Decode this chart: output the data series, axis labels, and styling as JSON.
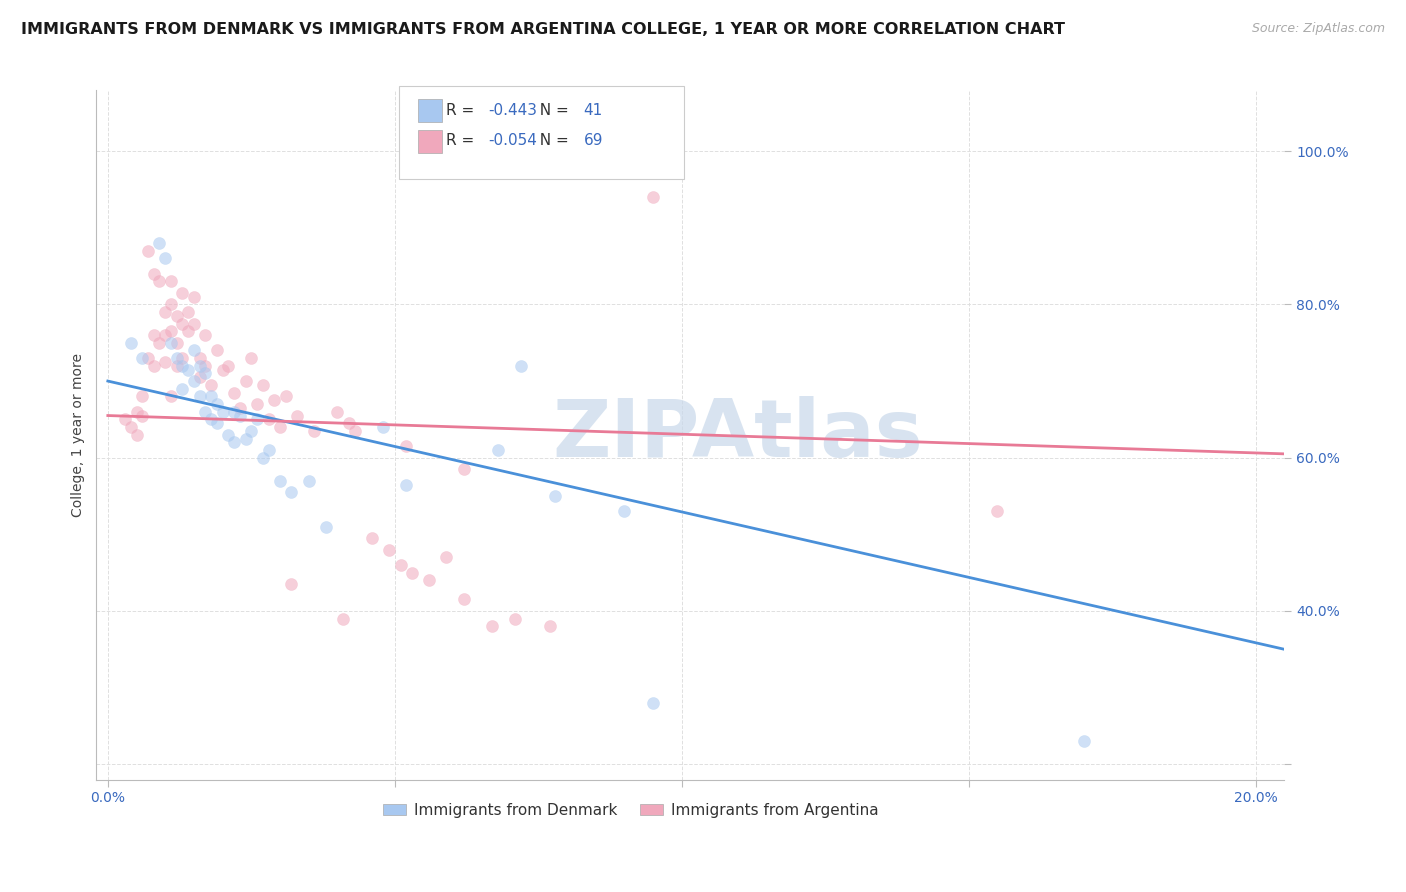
{
  "title": "IMMIGRANTS FROM DENMARK VS IMMIGRANTS FROM ARGENTINA COLLEGE, 1 YEAR OR MORE CORRELATION CHART",
  "source": "Source: ZipAtlas.com",
  "ylabel": "College, 1 year or more",
  "xlim": [
    -0.002,
    0.205
  ],
  "ylim": [
    0.18,
    1.08
  ],
  "xticks": [
    0.0,
    0.05,
    0.1,
    0.15,
    0.2
  ],
  "xtick_labels": [
    "0.0%",
    "",
    "",
    "",
    "20.0%"
  ],
  "yticks": [
    0.2,
    0.4,
    0.6,
    0.8,
    1.0
  ],
  "ytick_labels": [
    "",
    "40.0%",
    "60.0%",
    "80.0%",
    "100.0%"
  ],
  "denmark_color": "#a8c8f0",
  "argentina_color": "#f0a8bc",
  "denmark_line_color": "#4a90d9",
  "argentina_line_color": "#e87a96",
  "denmark_R": "-0.443",
  "denmark_N": "41",
  "argentina_R": "-0.054",
  "argentina_N": "69",
  "denmark_scatter": [
    [
      0.004,
      0.75
    ],
    [
      0.006,
      0.73
    ],
    [
      0.009,
      0.88
    ],
    [
      0.01,
      0.86
    ],
    [
      0.011,
      0.75
    ],
    [
      0.012,
      0.73
    ],
    [
      0.013,
      0.72
    ],
    [
      0.013,
      0.69
    ],
    [
      0.014,
      0.715
    ],
    [
      0.015,
      0.7
    ],
    [
      0.015,
      0.74
    ],
    [
      0.016,
      0.72
    ],
    [
      0.016,
      0.68
    ],
    [
      0.017,
      0.71
    ],
    [
      0.017,
      0.66
    ],
    [
      0.018,
      0.68
    ],
    [
      0.018,
      0.65
    ],
    [
      0.019,
      0.67
    ],
    [
      0.019,
      0.645
    ],
    [
      0.02,
      0.66
    ],
    [
      0.021,
      0.63
    ],
    [
      0.022,
      0.66
    ],
    [
      0.022,
      0.62
    ],
    [
      0.023,
      0.655
    ],
    [
      0.024,
      0.625
    ],
    [
      0.025,
      0.635
    ],
    [
      0.026,
      0.65
    ],
    [
      0.027,
      0.6
    ],
    [
      0.028,
      0.61
    ],
    [
      0.03,
      0.57
    ],
    [
      0.032,
      0.555
    ],
    [
      0.035,
      0.57
    ],
    [
      0.038,
      0.51
    ],
    [
      0.048,
      0.64
    ],
    [
      0.052,
      0.565
    ],
    [
      0.068,
      0.61
    ],
    [
      0.072,
      0.72
    ],
    [
      0.078,
      0.55
    ],
    [
      0.09,
      0.53
    ],
    [
      0.095,
      0.28
    ],
    [
      0.17,
      0.23
    ]
  ],
  "argentina_scatter": [
    [
      0.003,
      0.65
    ],
    [
      0.004,
      0.64
    ],
    [
      0.005,
      0.63
    ],
    [
      0.005,
      0.66
    ],
    [
      0.006,
      0.68
    ],
    [
      0.006,
      0.655
    ],
    [
      0.007,
      0.73
    ],
    [
      0.007,
      0.87
    ],
    [
      0.008,
      0.72
    ],
    [
      0.008,
      0.84
    ],
    [
      0.008,
      0.76
    ],
    [
      0.009,
      0.75
    ],
    [
      0.009,
      0.83
    ],
    [
      0.01,
      0.79
    ],
    [
      0.01,
      0.76
    ],
    [
      0.01,
      0.725
    ],
    [
      0.011,
      0.8
    ],
    [
      0.011,
      0.765
    ],
    [
      0.011,
      0.83
    ],
    [
      0.011,
      0.68
    ],
    [
      0.012,
      0.785
    ],
    [
      0.012,
      0.75
    ],
    [
      0.012,
      0.72
    ],
    [
      0.013,
      0.815
    ],
    [
      0.013,
      0.775
    ],
    [
      0.013,
      0.73
    ],
    [
      0.014,
      0.79
    ],
    [
      0.014,
      0.765
    ],
    [
      0.015,
      0.81
    ],
    [
      0.015,
      0.775
    ],
    [
      0.016,
      0.73
    ],
    [
      0.016,
      0.705
    ],
    [
      0.017,
      0.76
    ],
    [
      0.017,
      0.72
    ],
    [
      0.018,
      0.695
    ],
    [
      0.019,
      0.74
    ],
    [
      0.02,
      0.715
    ],
    [
      0.021,
      0.72
    ],
    [
      0.022,
      0.685
    ],
    [
      0.023,
      0.665
    ],
    [
      0.024,
      0.7
    ],
    [
      0.025,
      0.73
    ],
    [
      0.026,
      0.67
    ],
    [
      0.027,
      0.695
    ],
    [
      0.028,
      0.65
    ],
    [
      0.029,
      0.675
    ],
    [
      0.03,
      0.64
    ],
    [
      0.031,
      0.68
    ],
    [
      0.033,
      0.655
    ],
    [
      0.036,
      0.635
    ],
    [
      0.04,
      0.66
    ],
    [
      0.042,
      0.645
    ],
    [
      0.043,
      0.635
    ],
    [
      0.046,
      0.495
    ],
    [
      0.049,
      0.48
    ],
    [
      0.051,
      0.46
    ],
    [
      0.053,
      0.45
    ],
    [
      0.056,
      0.44
    ],
    [
      0.059,
      0.47
    ],
    [
      0.062,
      0.415
    ],
    [
      0.067,
      0.38
    ],
    [
      0.071,
      0.39
    ],
    [
      0.077,
      0.38
    ],
    [
      0.052,
      0.615
    ],
    [
      0.062,
      0.585
    ],
    [
      0.041,
      0.39
    ],
    [
      0.032,
      0.435
    ],
    [
      0.155,
      0.53
    ],
    [
      0.095,
      0.94
    ]
  ],
  "denmark_trend_x": [
    0.0,
    0.205
  ],
  "denmark_trend_y": [
    0.7,
    0.35
  ],
  "argentina_trend_x": [
    0.0,
    0.205
  ],
  "argentina_trend_y": [
    0.655,
    0.605
  ],
  "watermark": "ZIPAtlas",
  "watermark_color": "#c8d8ea",
  "background_color": "#ffffff",
  "grid_color": "#e0e0e0",
  "title_fontsize": 11.5,
  "label_fontsize": 10,
  "tick_fontsize": 10,
  "legend_fontsize": 11,
  "scatter_size": 75,
  "scatter_alpha": 0.55,
  "line_width": 2.0
}
